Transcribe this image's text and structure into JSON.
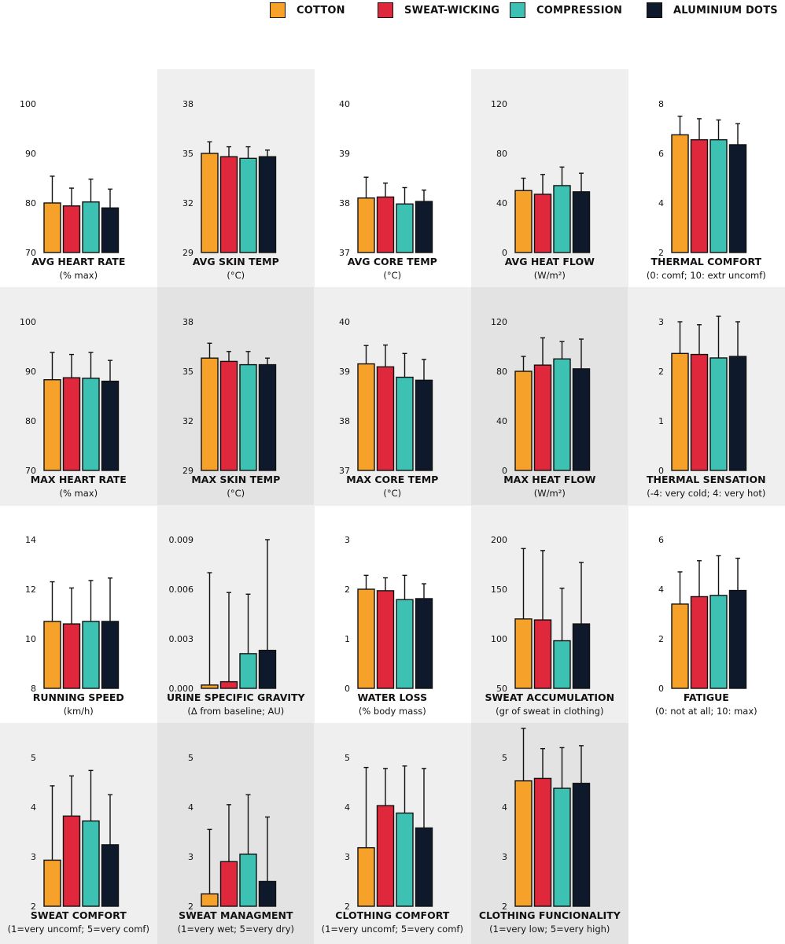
{
  "legend": [
    {
      "label": "COTTON",
      "color": "#F5A12A"
    },
    {
      "label": "SWEAT-WICKING",
      "color": "#E0283C"
    },
    {
      "label": "COMPRESSION",
      "color": "#3CC1B3"
    },
    {
      "label": "ALUMINIUM DOTS",
      "color": "#0E1A2C"
    }
  ],
  "series_names": [
    "COTTON",
    "SWEAT-WICKING",
    "COMPRESSION",
    "ALUMINIUM DOTS"
  ],
  "colors": {
    "cotton": "#F5A12A",
    "sweat_wicking": "#E0283C",
    "compression": "#3CC1B3",
    "aluminium_dots": "#0E1A2C",
    "panel_shade": "#EFEFEF",
    "panel_shade_dark": "#E3E3E3"
  },
  "chart_data": [
    {
      "type": "bar",
      "title": "AVG HEART RATE",
      "subtitle": "(% max)",
      "ylim": [
        70,
        100
      ],
      "yticks": [
        70,
        80,
        90,
        100
      ],
      "tick_labels": [
        "70",
        "80",
        "90",
        "100"
      ],
      "values": [
        80,
        79.4,
        80.2,
        79
      ],
      "errors": [
        5.4,
        3.6,
        4.6,
        3.8
      ]
    },
    {
      "type": "bar",
      "title": "AVG SKIN TEMP",
      "subtitle": "(°C)",
      "ylim": [
        29,
        38
      ],
      "yticks": [
        29,
        32,
        35,
        38
      ],
      "tick_labels": [
        "29",
        "32",
        "35",
        "38"
      ],
      "values": [
        35,
        34.8,
        34.7,
        34.8
      ],
      "errors": [
        0.7,
        0.6,
        0.7,
        0.4
      ]
    },
    {
      "type": "bar",
      "title": "AVG CORE TEMP",
      "subtitle": "(°C)",
      "ylim": [
        37,
        40
      ],
      "yticks": [
        37,
        38,
        39,
        40
      ],
      "tick_labels": [
        "37",
        "38",
        "39",
        "40"
      ],
      "values": [
        38.1,
        38.12,
        37.98,
        38.03
      ],
      "errors": [
        0.42,
        0.28,
        0.33,
        0.23
      ]
    },
    {
      "type": "bar",
      "title": "AVG HEAT FLOW",
      "subtitle": "(W/m²)",
      "ylim": [
        0,
        120
      ],
      "yticks": [
        0,
        40,
        80,
        120
      ],
      "tick_labels": [
        "0",
        "40",
        "80",
        "120"
      ],
      "values": [
        50,
        47,
        54,
        49
      ],
      "errors": [
        10,
        16,
        15,
        15
      ]
    },
    {
      "type": "bar",
      "title": "THERMAL COMFORT",
      "subtitle": "(0: comf; 10: extr uncomf)",
      "ylim": [
        2,
        8
      ],
      "yticks": [
        2,
        4,
        6,
        8
      ],
      "tick_labels": [
        "2",
        "4",
        "6",
        "8"
      ],
      "values": [
        6.75,
        6.55,
        6.55,
        6.35
      ],
      "errors": [
        0.75,
        0.85,
        0.8,
        0.85
      ]
    },
    {
      "type": "bar",
      "title": "MAX HEART RATE",
      "subtitle": "(% max)",
      "ylim": [
        70,
        100
      ],
      "yticks": [
        70,
        80,
        90,
        100
      ],
      "tick_labels": [
        "70",
        "80",
        "90",
        "100"
      ],
      "values": [
        88.3,
        88.7,
        88.6,
        88
      ],
      "errors": [
        5.5,
        4.7,
        5.2,
        4.2
      ]
    },
    {
      "type": "bar",
      "title": "MAX SKIN TEMP",
      "subtitle": "(°C)",
      "ylim": [
        29,
        38
      ],
      "yticks": [
        29,
        32,
        35,
        38
      ],
      "tick_labels": [
        "29",
        "32",
        "35",
        "38"
      ],
      "values": [
        35.8,
        35.6,
        35.4,
        35.4
      ],
      "errors": [
        0.9,
        0.6,
        0.8,
        0.4
      ]
    },
    {
      "type": "bar",
      "title": "MAX CORE TEMP",
      "subtitle": "(°C)",
      "ylim": [
        37,
        40
      ],
      "yticks": [
        37,
        38,
        39,
        40
      ],
      "tick_labels": [
        "37",
        "38",
        "39",
        "40"
      ],
      "values": [
        39.15,
        39.09,
        38.88,
        38.82
      ],
      "errors": [
        0.37,
        0.44,
        0.48,
        0.42
      ]
    },
    {
      "type": "bar",
      "title": "MAX HEAT FLOW",
      "subtitle": "(W/m²)",
      "ylim": [
        0,
        120
      ],
      "yticks": [
        0,
        40,
        80,
        120
      ],
      "tick_labels": [
        "0",
        "40",
        "80",
        "120"
      ],
      "values": [
        80,
        85,
        90,
        82
      ],
      "errors": [
        12,
        22,
        14,
        24
      ]
    },
    {
      "type": "bar",
      "title": "THERMAL SENSATION",
      "subtitle": "(-4: very cold; 4: very hot)",
      "ylim": [
        0,
        3
      ],
      "yticks": [
        0,
        1,
        2,
        3
      ],
      "tick_labels": [
        "0",
        "1",
        "2",
        "3"
      ],
      "values": [
        2.36,
        2.34,
        2.27,
        2.3
      ],
      "errors": [
        0.64,
        0.6,
        0.84,
        0.7
      ]
    },
    {
      "type": "bar",
      "title": "RUNNING SPEED",
      "subtitle": "(km/h)",
      "ylim": [
        8,
        14
      ],
      "yticks": [
        8,
        10,
        12,
        14
      ],
      "tick_labels": [
        "8",
        "10",
        "12",
        "14"
      ],
      "values": [
        10.7,
        10.6,
        10.7,
        10.7
      ],
      "errors": [
        1.6,
        1.45,
        1.65,
        1.75
      ]
    },
    {
      "type": "bar",
      "title": "URINE SPECIFIC GRAVITY",
      "subtitle": "(Δ from baseline; AU)",
      "ylim": [
        0,
        0.009
      ],
      "yticks": [
        0,
        0.003,
        0.006,
        0.009
      ],
      "tick_labels": [
        "0.000",
        "0.003",
        "0.006",
        "0.009"
      ],
      "values": [
        0.0002,
        0.0004,
        0.0021,
        0.0023
      ],
      "errors": [
        0.0068,
        0.0054,
        0.0036,
        0.0067
      ]
    },
    {
      "type": "bar",
      "title": "WATER LOSS",
      "subtitle": "(% body mass)",
      "ylim": [
        0,
        3
      ],
      "yticks": [
        0,
        1,
        2,
        3
      ],
      "tick_labels": [
        "0",
        "1",
        "2",
        "3"
      ],
      "values": [
        2.0,
        1.97,
        1.79,
        1.81
      ],
      "errors": [
        0.28,
        0.26,
        0.49,
        0.3
      ]
    },
    {
      "type": "bar",
      "title": "SWEAT ACCUMULATION",
      "subtitle": "(gr of sweat in clothing)",
      "ylim": [
        50,
        200
      ],
      "yticks": [
        50,
        100,
        150,
        200
      ],
      "tick_labels": [
        "50",
        "100",
        "150",
        "200"
      ],
      "values": [
        120,
        119,
        98,
        115
      ],
      "errors": [
        71,
        70,
        53,
        62
      ]
    },
    {
      "type": "bar",
      "title": "FATIGUE",
      "subtitle": "(0: not at all; 10: max)",
      "ylim": [
        0,
        6
      ],
      "yticks": [
        0,
        2,
        4,
        6
      ],
      "tick_labels": [
        "0",
        "2",
        "4",
        "6"
      ],
      "values": [
        3.4,
        3.7,
        3.75,
        3.95
      ],
      "errors": [
        1.3,
        1.45,
        1.6,
        1.3
      ]
    },
    {
      "type": "bar",
      "title": "SWEAT COMFORT",
      "subtitle": "(1=very uncomf; 5=very comf)",
      "ylim": [
        2,
        5
      ],
      "yticks": [
        2,
        3,
        4,
        5
      ],
      "tick_labels": [
        "2",
        "3",
        "4",
        "5"
      ],
      "values": [
        2.93,
        3.82,
        3.72,
        3.24
      ],
      "errors": [
        1.5,
        0.81,
        1.02,
        1.01
      ]
    },
    {
      "type": "bar",
      "title": "SWEAT MANAGMENT",
      "subtitle": "(1=very wet; 5=very dry)",
      "ylim": [
        2,
        5
      ],
      "yticks": [
        2,
        3,
        4,
        5
      ],
      "tick_labels": [
        "2",
        "3",
        "4",
        "5"
      ],
      "values": [
        2.25,
        2.9,
        3.05,
        2.5
      ],
      "errors": [
        1.3,
        1.15,
        1.2,
        1.3
      ]
    },
    {
      "type": "bar",
      "title": "CLOTHING COMFORT",
      "subtitle": "(1=very uncomf; 5=very comf)",
      "ylim": [
        2,
        5
      ],
      "yticks": [
        2,
        3,
        4,
        5
      ],
      "tick_labels": [
        "2",
        "3",
        "4",
        "5"
      ],
      "values": [
        3.18,
        4.03,
        3.88,
        3.58
      ],
      "errors": [
        1.62,
        0.75,
        0.95,
        1.2
      ]
    },
    {
      "type": "bar",
      "title": "CLOTHING FUNCIONALITY",
      "subtitle": "(1=very low; 5=very high)",
      "ylim": [
        2,
        5
      ],
      "yticks": [
        2,
        3,
        4,
        5
      ],
      "tick_labels": [
        "2",
        "3",
        "4",
        "5"
      ],
      "values": [
        4.53,
        4.58,
        4.38,
        4.48
      ],
      "errors": [
        1.06,
        0.6,
        0.82,
        0.76
      ]
    }
  ]
}
